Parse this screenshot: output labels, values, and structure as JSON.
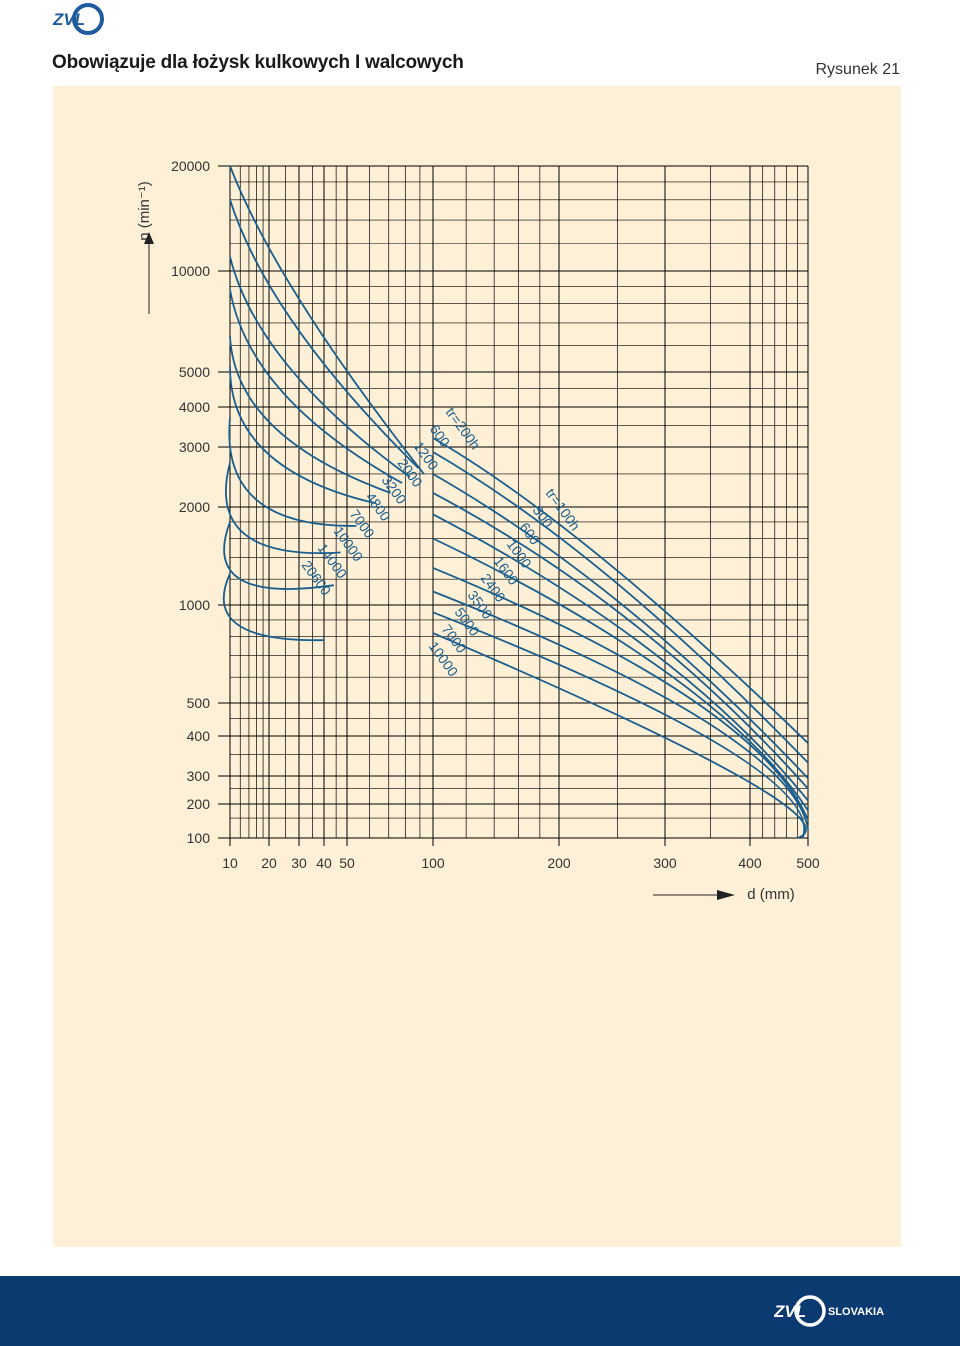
{
  "header": {
    "title": "Obowiązuje dla łożysk kulkowych I walcowych",
    "figure_label": "Rysunek 21"
  },
  "footer": {
    "brand": "SLOVAKIA"
  },
  "colors": {
    "panel_bg": "#fdf0d6",
    "curve": "#1a5e8e",
    "footer_bg": "#0b3a70",
    "logo_blue": "#1f5a9c"
  },
  "icons": {
    "top_logo": "zvl-logo-icon",
    "footer_logo": "zvl-slovakia-logo-icon",
    "arrow": "axis-arrow-icon"
  },
  "chart_data": {
    "type": "line",
    "xlabel": "d (mm)",
    "ylabel": "n (min⁻¹)",
    "x_ticks": [
      10,
      20,
      30,
      40,
      50,
      100,
      200,
      300,
      400,
      500
    ],
    "y_ticks": [
      100,
      200,
      300,
      400,
      500,
      1000,
      2000,
      3000,
      4000,
      5000,
      10000,
      20000
    ],
    "xlim": [
      10,
      500
    ],
    "ylim": [
      100,
      20000
    ],
    "grid": true,
    "series": [
      {
        "name": "tr=200h",
        "values": [
          [
            10,
            23000
          ],
          [
            31,
            8000
          ],
          [
            93,
            2500
          ]
        ]
      },
      {
        "name": "600",
        "values": [
          [
            10,
            16000
          ],
          [
            29,
            6800
          ],
          [
            89,
            2600
          ]
        ]
      },
      {
        "name": "1200",
        "values": [
          [
            10,
            11000
          ],
          [
            26,
            5200
          ],
          [
            83,
            2450
          ]
        ]
      },
      {
        "name": "2000",
        "values": [
          [
            10,
            8800
          ],
          [
            24,
            4400
          ],
          [
            78,
            2350
          ]
        ]
      },
      {
        "name": "3200",
        "values": [
          [
            10,
            6400
          ],
          [
            21,
            3500
          ],
          [
            71,
            2200
          ]
        ]
      },
      {
        "name": "4800",
        "values": [
          [
            10,
            5200
          ],
          [
            19,
            2900
          ],
          [
            63,
            2050
          ]
        ]
      },
      {
        "name": "7000",
        "values": [
          [
            10,
            3700
          ],
          [
            16,
            2100
          ],
          [
            54,
            1750
          ]
        ]
      },
      {
        "name": "10000",
        "values": [
          [
            10,
            2700
          ],
          [
            13,
            1650
          ],
          [
            47,
            1450
          ]
        ]
      },
      {
        "name": "14000",
        "values": [
          [
            10,
            1800
          ],
          [
            12,
            1200
          ],
          [
            44,
            1150
          ]
        ]
      },
      {
        "name": "20600",
        "values": [
          [
            10,
            1250
          ],
          [
            11.5,
            870
          ],
          [
            40,
            780
          ]
        ]
      },
      {
        "name": "tr=100h",
        "values": [
          [
            100,
            3200
          ],
          [
            235,
            1400
          ],
          [
            500,
            380
          ]
        ]
      },
      {
        "name": "300",
        "values": [
          [
            100,
            2900
          ],
          [
            245,
            1200
          ],
          [
            500,
            330
          ]
        ]
      },
      {
        "name": "600",
        "values": [
          [
            100,
            2500
          ],
          [
            255,
            1000
          ],
          [
            500,
            290
          ]
        ]
      },
      {
        "name": "1000",
        "values": [
          [
            100,
            2200
          ],
          [
            265,
            880
          ],
          [
            500,
            250
          ]
        ]
      },
      {
        "name": "1600",
        "values": [
          [
            100,
            1900
          ],
          [
            285,
            720
          ],
          [
            500,
            210
          ]
        ]
      },
      {
        "name": "2400",
        "values": [
          [
            100,
            1600
          ],
          [
            305,
            610
          ],
          [
            500,
            175
          ]
        ]
      },
      {
        "name": "3500",
        "values": [
          [
            100,
            1300
          ],
          [
            325,
            520
          ],
          [
            500,
            145
          ]
        ]
      },
      {
        "name": "5000",
        "values": [
          [
            100,
            1100
          ],
          [
            345,
            440
          ],
          [
            500,
            120
          ]
        ]
      },
      {
        "name": "7000",
        "values": [
          [
            100,
            950
          ],
          [
            365,
            370
          ],
          [
            490,
            100
          ]
        ]
      },
      {
        "name": "10000",
        "values": [
          [
            100,
            820
          ],
          [
            385,
            300
          ],
          [
            480,
            100
          ]
        ]
      }
    ],
    "label_positions": [
      "left-tr200",
      "right-tr100"
    ]
  }
}
